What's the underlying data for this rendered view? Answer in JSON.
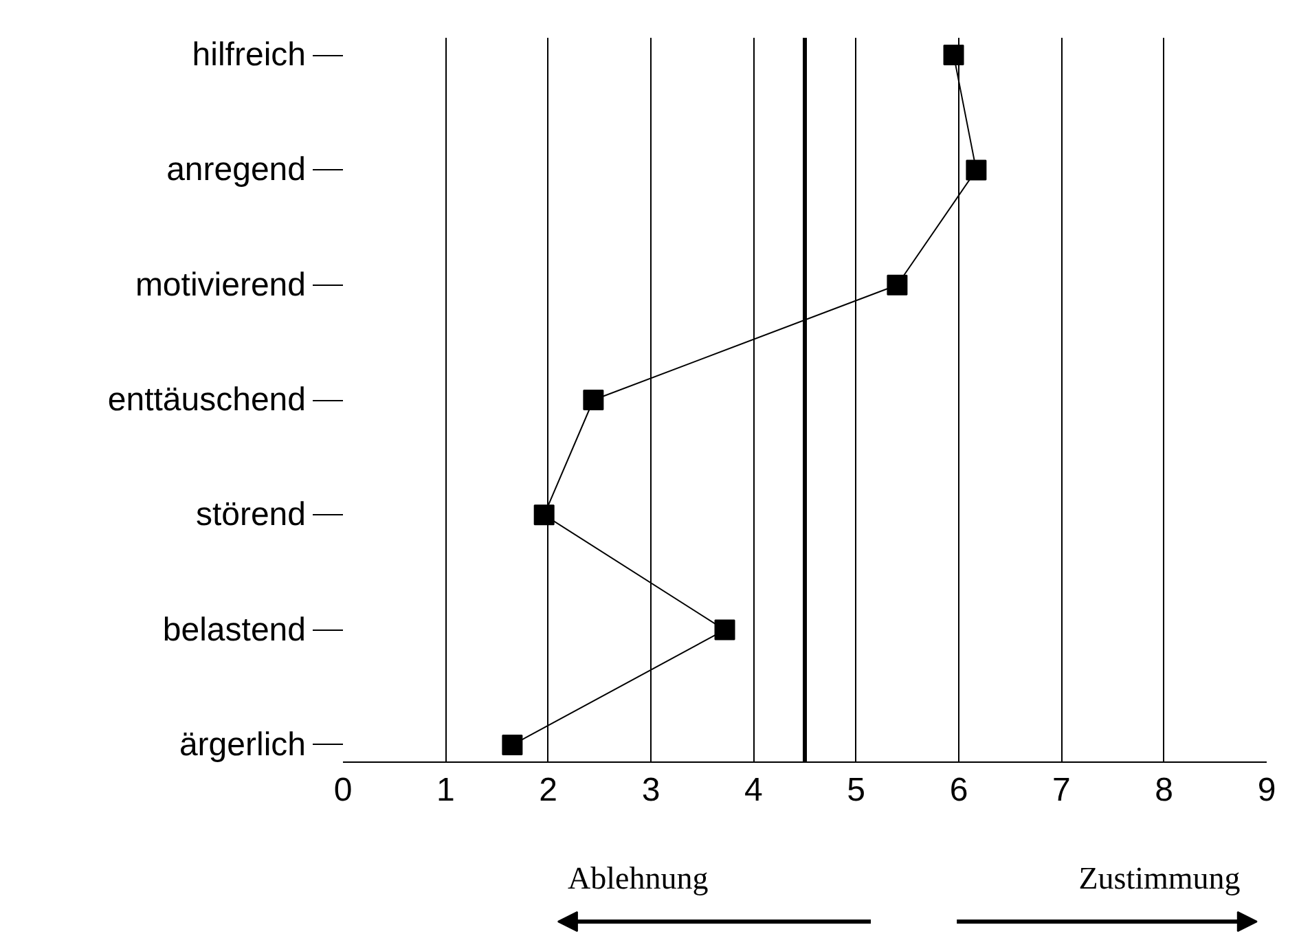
{
  "chart_data": {
    "type": "line",
    "orientation": "horizontal",
    "categories": [
      "hilfreich",
      "anregend",
      "motivierend",
      "enttäuschend",
      "störend",
      "belastend",
      "ärgerlich"
    ],
    "values": [
      5.95,
      6.17,
      5.4,
      2.44,
      1.96,
      3.72,
      1.65
    ],
    "color": "#000000",
    "marker": "square",
    "line_style": "solid",
    "xlim": [
      0,
      9
    ],
    "xticks": [
      0,
      1,
      2,
      3,
      4,
      5,
      6,
      7,
      8,
      9
    ],
    "grid": "x",
    "ref_lines": [
      {
        "axis": "x",
        "value": 4.5,
        "color": "#000000"
      }
    ],
    "annotations": [
      "Ablehnung",
      "Zustimmung"
    ]
  }
}
